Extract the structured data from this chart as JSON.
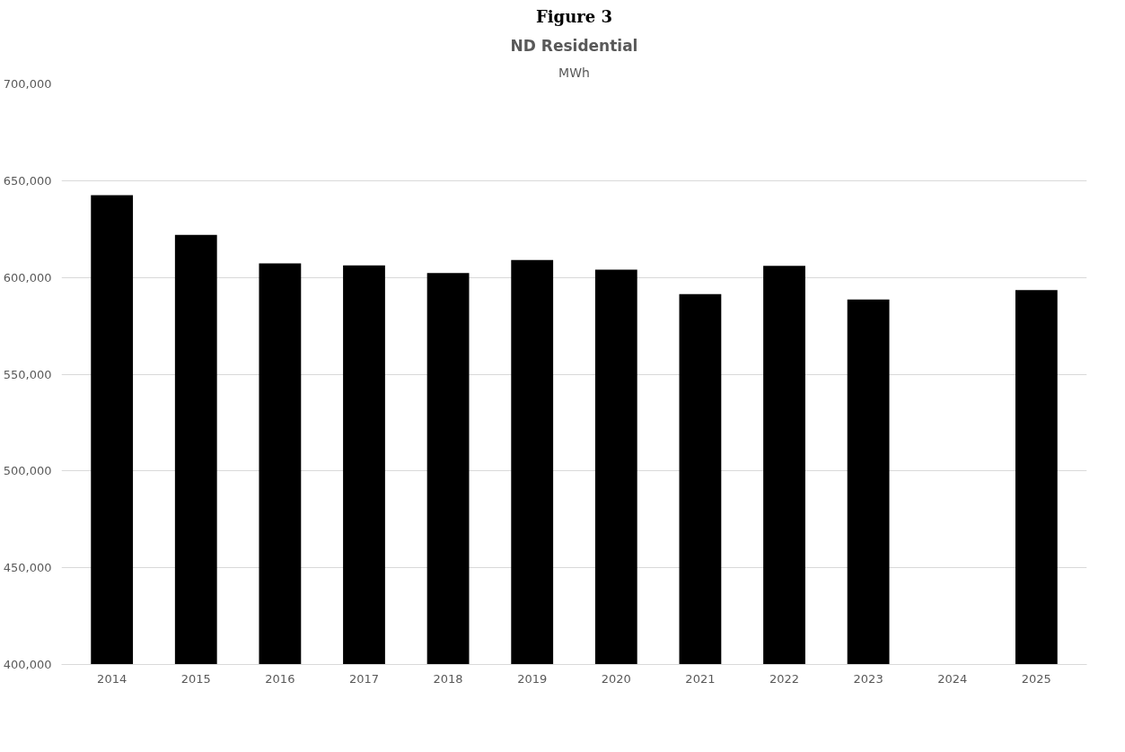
{
  "chart_data": {
    "type": "bar",
    "title": "ND Residential",
    "subtitle": "MWh",
    "annotations": [
      "Figure 3"
    ],
    "categories": [
      "2014",
      "2015",
      "2016",
      "2017",
      "2018",
      "2019",
      "2020",
      "2021",
      "2022",
      "2023",
      "2024",
      "2025"
    ],
    "values": [
      642500,
      622000,
      607300,
      606200,
      602300,
      609000,
      604000,
      591400,
      606000,
      588600,
      null,
      593500
    ],
    "colors": [
      "#000000",
      "#000000",
      "#000000",
      "#000000",
      "#000000",
      "#000000",
      "#000000",
      "#000000",
      "#000000",
      "#000000",
      "#000000",
      "#000000"
    ],
    "ylim": [
      400000,
      700000
    ],
    "yticks": [
      {
        "value": 400000,
        "label": "400,000"
      },
      {
        "value": 450000,
        "label": "450,000"
      },
      {
        "value": 500000,
        "label": "500,000"
      },
      {
        "value": 550000,
        "label": "550,000"
      },
      {
        "value": 600000,
        "label": "600,000"
      },
      {
        "value": 650000,
        "label": "650,000"
      },
      {
        "value": 700000,
        "label": "700,000"
      }
    ],
    "grid": "y"
  }
}
